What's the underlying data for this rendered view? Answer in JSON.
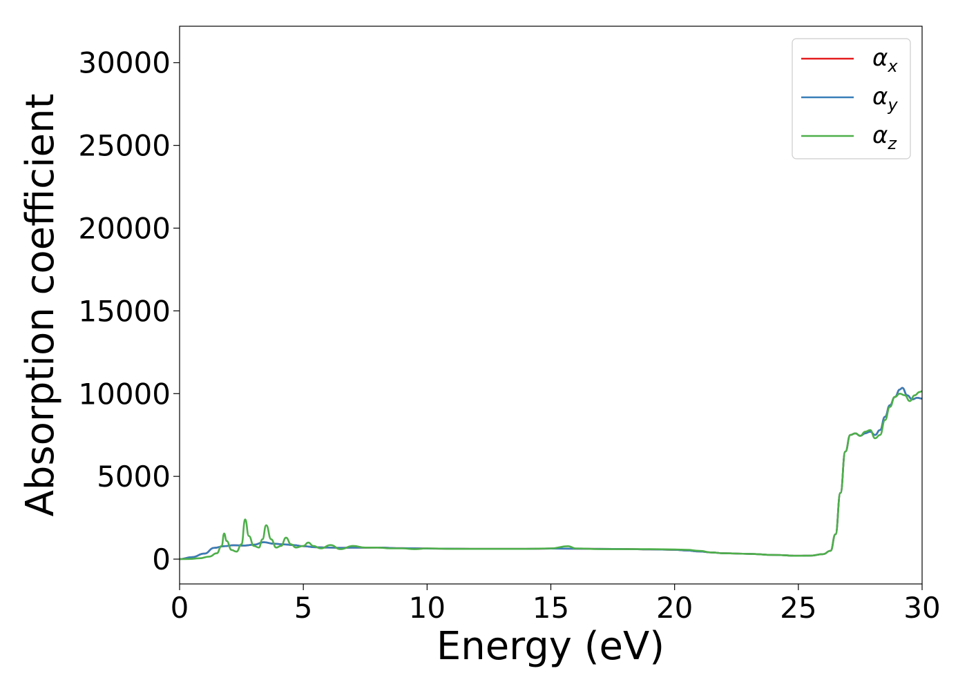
{
  "chart_data": {
    "type": "line",
    "title": "",
    "xlabel": "Energy (eV)",
    "ylabel": "Absorption coefficient",
    "xlim": [
      0,
      30
    ],
    "ylim": [
      -1500,
      32200
    ],
    "xticks": [
      0,
      5,
      10,
      15,
      20,
      25,
      30
    ],
    "xtick_labels": [
      "0",
      "5",
      "10",
      "15",
      "20",
      "25",
      "30"
    ],
    "yticks": [
      0,
      5000,
      10000,
      15000,
      20000,
      25000,
      30000
    ],
    "ytick_labels": [
      "0",
      "5000",
      "10000",
      "15000",
      "20000",
      "25000",
      "30000"
    ],
    "grid": false,
    "legend_position": "top-right",
    "series": [
      {
        "name": "α_x",
        "legend_main": "α",
        "legend_sub": "x",
        "color": "#e41a1c",
        "points": [
          [
            0,
            0
          ],
          [
            0.5,
            120
          ],
          [
            1,
            330
          ],
          [
            1.4,
            680
          ],
          [
            1.8,
            780
          ],
          [
            2.2,
            840
          ],
          [
            2.6,
            820
          ],
          [
            3.0,
            870
          ],
          [
            3.4,
            1020
          ],
          [
            3.8,
            930
          ],
          [
            4.2,
            890
          ],
          [
            4.6,
            850
          ],
          [
            5,
            780
          ],
          [
            5.5,
            720
          ],
          [
            6,
            700
          ],
          [
            6.5,
            680
          ],
          [
            7,
            690
          ],
          [
            8,
            700
          ],
          [
            9,
            660
          ],
          [
            10,
            640
          ],
          [
            11,
            630
          ],
          [
            12,
            620
          ],
          [
            13,
            620
          ],
          [
            14,
            620
          ],
          [
            15,
            640
          ],
          [
            16,
            630
          ],
          [
            17,
            620
          ],
          [
            18,
            610
          ],
          [
            19,
            590
          ],
          [
            20,
            560
          ],
          [
            20.5,
            520
          ],
          [
            21,
            460
          ],
          [
            21.5,
            400
          ],
          [
            22,
            350
          ],
          [
            23,
            320
          ],
          [
            24,
            250
          ],
          [
            25,
            200
          ],
          [
            25.5,
            210
          ],
          [
            26,
            300
          ],
          [
            26.3,
            500
          ],
          [
            26.5,
            1500
          ],
          [
            26.7,
            4000
          ],
          [
            26.9,
            6500
          ],
          [
            27.1,
            7500
          ],
          [
            27.3,
            7600
          ],
          [
            27.5,
            7450
          ],
          [
            27.7,
            7600
          ],
          [
            27.9,
            7700
          ],
          [
            28.1,
            7500
          ],
          [
            28.3,
            7800
          ],
          [
            28.5,
            8600
          ],
          [
            28.7,
            9300
          ],
          [
            28.9,
            9800
          ],
          [
            29.1,
            10250
          ],
          [
            29.2,
            10350
          ],
          [
            29.4,
            9900
          ],
          [
            29.6,
            9650
          ],
          [
            29.8,
            9750
          ],
          [
            30,
            9700
          ]
        ]
      },
      {
        "name": "α_y",
        "legend_main": "α",
        "legend_sub": "y",
        "color": "#377eb8",
        "points": [
          [
            0,
            0
          ],
          [
            0.5,
            120
          ],
          [
            1,
            330
          ],
          [
            1.4,
            680
          ],
          [
            1.8,
            780
          ],
          [
            2.2,
            840
          ],
          [
            2.6,
            820
          ],
          [
            3.0,
            870
          ],
          [
            3.4,
            1020
          ],
          [
            3.8,
            930
          ],
          [
            4.2,
            890
          ],
          [
            4.6,
            850
          ],
          [
            5,
            780
          ],
          [
            5.5,
            720
          ],
          [
            6,
            700
          ],
          [
            6.5,
            680
          ],
          [
            7,
            690
          ],
          [
            8,
            700
          ],
          [
            9,
            660
          ],
          [
            10,
            640
          ],
          [
            11,
            630
          ],
          [
            12,
            620
          ],
          [
            13,
            620
          ],
          [
            14,
            620
          ],
          [
            15,
            640
          ],
          [
            16,
            630
          ],
          [
            17,
            620
          ],
          [
            18,
            610
          ],
          [
            19,
            590
          ],
          [
            20,
            560
          ],
          [
            20.5,
            520
          ],
          [
            21,
            460
          ],
          [
            21.5,
            400
          ],
          [
            22,
            350
          ],
          [
            23,
            320
          ],
          [
            24,
            250
          ],
          [
            25,
            200
          ],
          [
            25.5,
            210
          ],
          [
            26,
            300
          ],
          [
            26.3,
            500
          ],
          [
            26.5,
            1500
          ],
          [
            26.7,
            4000
          ],
          [
            26.9,
            6500
          ],
          [
            27.1,
            7500
          ],
          [
            27.3,
            7600
          ],
          [
            27.5,
            7450
          ],
          [
            27.7,
            7600
          ],
          [
            27.9,
            7700
          ],
          [
            28.1,
            7500
          ],
          [
            28.3,
            7800
          ],
          [
            28.5,
            8600
          ],
          [
            28.7,
            9300
          ],
          [
            28.9,
            9800
          ],
          [
            29.1,
            10250
          ],
          [
            29.2,
            10350
          ],
          [
            29.4,
            9900
          ],
          [
            29.6,
            9650
          ],
          [
            29.8,
            9750
          ],
          [
            30,
            9700
          ]
        ]
      },
      {
        "name": "α_z",
        "legend_main": "α",
        "legend_sub": "z",
        "color": "#4daf4a",
        "points": [
          [
            0,
            0
          ],
          [
            0.4,
            10
          ],
          [
            0.8,
            50
          ],
          [
            1.2,
            150
          ],
          [
            1.5,
            350
          ],
          [
            1.7,
            800
          ],
          [
            1.8,
            1550
          ],
          [
            1.9,
            1100
          ],
          [
            2.1,
            550
          ],
          [
            2.3,
            450
          ],
          [
            2.5,
            900
          ],
          [
            2.65,
            2400
          ],
          [
            2.8,
            1400
          ],
          [
            3.0,
            800
          ],
          [
            3.2,
            700
          ],
          [
            3.35,
            1200
          ],
          [
            3.5,
            2050
          ],
          [
            3.7,
            1200
          ],
          [
            3.9,
            700
          ],
          [
            4.1,
            800
          ],
          [
            4.3,
            1300
          ],
          [
            4.5,
            900
          ],
          [
            4.7,
            700
          ],
          [
            5.0,
            800
          ],
          [
            5.2,
            1000
          ],
          [
            5.4,
            800
          ],
          [
            5.7,
            650
          ],
          [
            6.1,
            850
          ],
          [
            6.5,
            600
          ],
          [
            7.0,
            800
          ],
          [
            7.5,
            700
          ],
          [
            8.0,
            700
          ],
          [
            8.5,
            650
          ],
          [
            9.0,
            650
          ],
          [
            9.5,
            600
          ],
          [
            10,
            650
          ],
          [
            11,
            620
          ],
          [
            12,
            620
          ],
          [
            13,
            620
          ],
          [
            14,
            620
          ],
          [
            15,
            650
          ],
          [
            15.7,
            780
          ],
          [
            16,
            650
          ],
          [
            17,
            600
          ],
          [
            18,
            600
          ],
          [
            19,
            600
          ],
          [
            20,
            580
          ],
          [
            20.5,
            560
          ],
          [
            21,
            500
          ],
          [
            21.5,
            400
          ],
          [
            22,
            350
          ],
          [
            23,
            320
          ],
          [
            24,
            250
          ],
          [
            25,
            200
          ],
          [
            25.5,
            210
          ],
          [
            26,
            300
          ],
          [
            26.3,
            500
          ],
          [
            26.5,
            1500
          ],
          [
            26.7,
            4000
          ],
          [
            26.9,
            6500
          ],
          [
            27.1,
            7500
          ],
          [
            27.3,
            7600
          ],
          [
            27.5,
            7450
          ],
          [
            27.7,
            7700
          ],
          [
            27.9,
            7800
          ],
          [
            28.1,
            7300
          ],
          [
            28.3,
            7500
          ],
          [
            28.5,
            8400
          ],
          [
            28.7,
            9200
          ],
          [
            28.9,
            9800
          ],
          [
            29.1,
            10000
          ],
          [
            29.3,
            9900
          ],
          [
            29.5,
            9550
          ],
          [
            29.7,
            9900
          ],
          [
            29.9,
            10100
          ],
          [
            30,
            10150
          ]
        ]
      }
    ]
  }
}
